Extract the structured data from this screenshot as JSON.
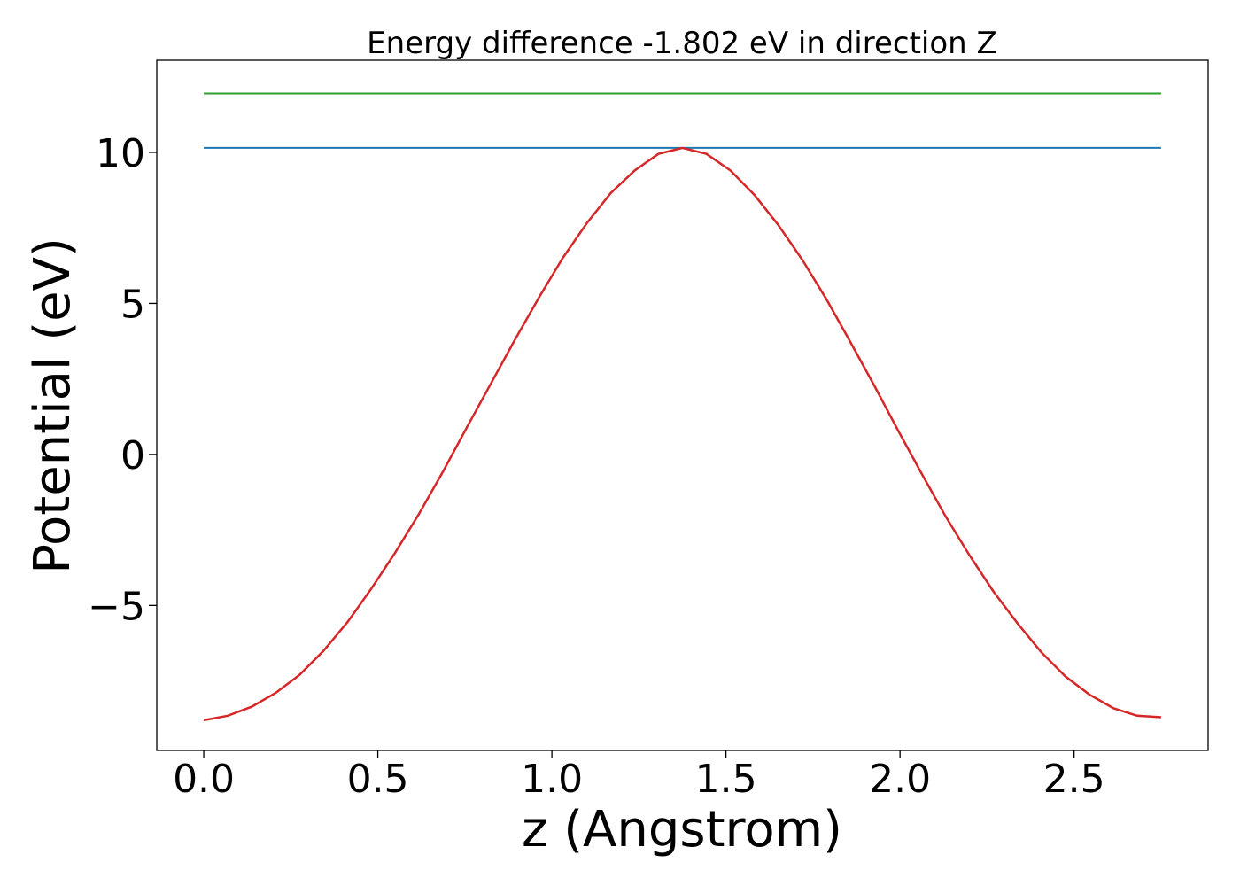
{
  "chart_data": {
    "type": "line",
    "title": "Energy difference -1.802 eV in direction Z",
    "xlabel": "z (Angstrom)",
    "ylabel": "Potential (eV)",
    "xlim": [
      -0.135,
      2.885
    ],
    "ylim": [
      -9.8,
      13.05
    ],
    "xticks": [
      0.0,
      0.5,
      1.0,
      1.5,
      2.0,
      2.5
    ],
    "xtick_labels": [
      "0.0",
      "0.5",
      "1.0",
      "1.5",
      "2.0",
      "2.5"
    ],
    "yticks": [
      -5,
      0,
      5,
      10
    ],
    "ytick_labels": [
      "−5",
      "0",
      "5",
      "10"
    ],
    "grid": false,
    "series": [
      {
        "color": "#2ca02c",
        "style": "horizontal",
        "x": [
          0.0,
          2.75
        ],
        "y": [
          11.95,
          11.95
        ]
      },
      {
        "color": "#1f77b4",
        "style": "horizontal",
        "x": [
          0.0,
          2.75
        ],
        "y": [
          10.15,
          10.15
        ]
      },
      {
        "color": "#d62728",
        "style": "line",
        "x": [
          0.0,
          0.069,
          0.138,
          0.206,
          0.275,
          0.344,
          0.413,
          0.481,
          0.55,
          0.619,
          0.688,
          0.756,
          0.825,
          0.894,
          0.963,
          1.031,
          1.1,
          1.169,
          1.238,
          1.306,
          1.375,
          1.444,
          1.513,
          1.581,
          1.65,
          1.719,
          1.788,
          1.856,
          1.925,
          1.994,
          2.063,
          2.131,
          2.2,
          2.269,
          2.338,
          2.406,
          2.475,
          2.544,
          2.613,
          2.681,
          2.75
        ],
        "y": [
          -8.8,
          -8.65,
          -8.35,
          -7.9,
          -7.3,
          -6.5,
          -5.55,
          -4.45,
          -3.25,
          -1.95,
          -0.55,
          0.9,
          2.35,
          3.8,
          5.2,
          6.5,
          7.65,
          8.65,
          9.4,
          9.95,
          10.15,
          9.95,
          9.4,
          8.6,
          7.6,
          6.45,
          5.15,
          3.75,
          2.3,
          0.8,
          -0.65,
          -2.05,
          -3.35,
          -4.55,
          -5.6,
          -6.55,
          -7.35,
          -7.95,
          -8.4,
          -8.65,
          -8.7
        ]
      }
    ]
  }
}
